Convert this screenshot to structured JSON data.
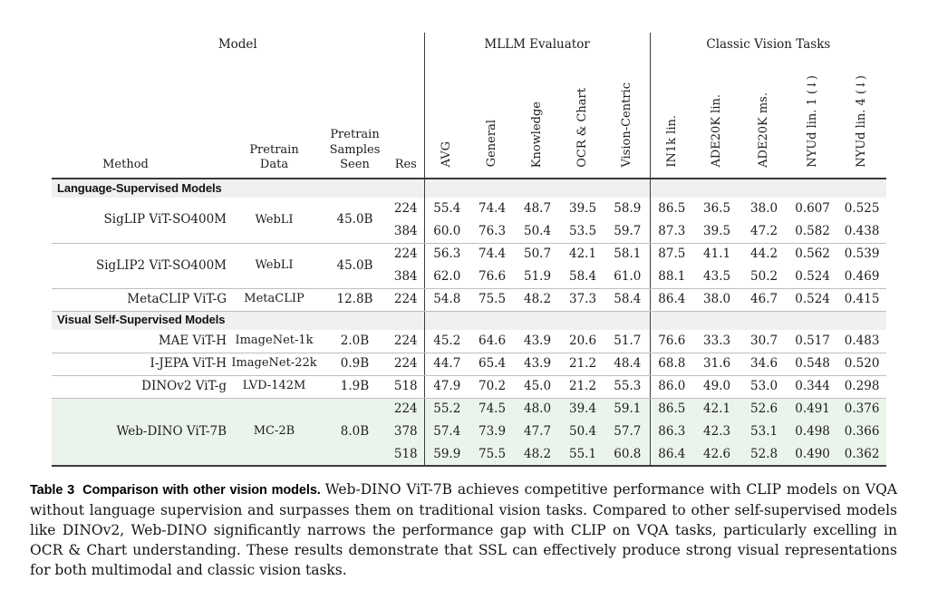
{
  "colors": {
    "section_band_bg": "#f0f0f0",
    "highlight_row_bg": "#ebf4ea",
    "rule_dark": "#3a3a3a",
    "rule_light": "#bfbfbf"
  },
  "table": {
    "group_headers": [
      {
        "label": "Model",
        "span": 4
      },
      {
        "label": "MLLM Evaluator",
        "span": 5
      },
      {
        "label": "Classic Vision Tasks",
        "span": 5
      }
    ],
    "columns": [
      "Method",
      "Pretrain Data",
      "Pretrain Samples Seen",
      "Res",
      "AVG",
      "General",
      "Knowledge",
      "OCR & Chart",
      "Vision-Centric",
      "IN1k lin.",
      "ADE20K lin.",
      "ADE20K ms.",
      "NYUd lin. 1 (↓)",
      "NYUd lin. 4 (↓)"
    ],
    "sections": [
      {
        "title": "Language-Supervised Models",
        "groups": [
          {
            "method": "SigLIP ViT-SO400M",
            "pretrain_data": "WebLI",
            "samples_seen": "45.0B",
            "rows": [
              {
                "res": "224",
                "values": [
                  "55.4",
                  "74.4",
                  "48.7",
                  "39.5",
                  "58.9",
                  "86.5",
                  "36.5",
                  "38.0",
                  "0.607",
                  "0.525"
                ]
              },
              {
                "res": "384",
                "values": [
                  "60.0",
                  "76.3",
                  "50.4",
                  "53.5",
                  "59.7",
                  "87.3",
                  "39.5",
                  "47.2",
                  "0.582",
                  "0.438"
                ]
              }
            ]
          },
          {
            "method": "SigLIP2 ViT-SO400M",
            "pretrain_data": "WebLI",
            "samples_seen": "45.0B",
            "rows": [
              {
                "res": "224",
                "values": [
                  "56.3",
                  "74.4",
                  "50.7",
                  "42.1",
                  "58.1",
                  "87.5",
                  "41.1",
                  "44.2",
                  "0.562",
                  "0.539"
                ]
              },
              {
                "res": "384",
                "values": [
                  "62.0",
                  "76.6",
                  "51.9",
                  "58.4",
                  "61.0",
                  "88.1",
                  "43.5",
                  "50.2",
                  "0.524",
                  "0.469"
                ]
              }
            ]
          },
          {
            "method": "MetaCLIP ViT-G",
            "pretrain_data": "MetaCLIP",
            "samples_seen": "12.8B",
            "rows": [
              {
                "res": "224",
                "values": [
                  "54.8",
                  "75.5",
                  "48.2",
                  "37.3",
                  "58.4",
                  "86.4",
                  "38.0",
                  "46.7",
                  "0.524",
                  "0.415"
                ]
              }
            ]
          }
        ]
      },
      {
        "title": "Visual Self-Supervised Models",
        "groups": [
          {
            "method": "MAE ViT-H",
            "pretrain_data": "ImageNet-1k",
            "samples_seen": "2.0B",
            "rows": [
              {
                "res": "224",
                "values": [
                  "45.2",
                  "64.6",
                  "43.9",
                  "20.6",
                  "51.7",
                  "76.6",
                  "33.3",
                  "30.7",
                  "0.517",
                  "0.483"
                ]
              }
            ]
          },
          {
            "method": "I-JEPA ViT-H",
            "pretrain_data": "ImageNet-22k",
            "samples_seen": "0.9B",
            "rows": [
              {
                "res": "224",
                "values": [
                  "44.7",
                  "65.4",
                  "43.9",
                  "21.2",
                  "48.4",
                  "68.8",
                  "31.6",
                  "34.6",
                  "0.548",
                  "0.520"
                ]
              }
            ]
          },
          {
            "method": "DINOv2 ViT-g",
            "pretrain_data": "LVD-142M",
            "samples_seen": "1.9B",
            "rows": [
              {
                "res": "518",
                "values": [
                  "47.9",
                  "70.2",
                  "45.0",
                  "21.2",
                  "55.3",
                  "86.0",
                  "49.0",
                  "53.0",
                  "0.344",
                  "0.298"
                ]
              }
            ]
          },
          {
            "method": "Web-DINO ViT-7B",
            "pretrain_data": "MC-2B",
            "samples_seen": "8.0B",
            "highlight": true,
            "rows": [
              {
                "res": "224",
                "values": [
                  "55.2",
                  "74.5",
                  "48.0",
                  "39.4",
                  "59.1",
                  "86.5",
                  "42.1",
                  "52.6",
                  "0.491",
                  "0.376"
                ]
              },
              {
                "res": "378",
                "values": [
                  "57.4",
                  "73.9",
                  "47.7",
                  "50.4",
                  "57.7",
                  "86.3",
                  "42.3",
                  "53.1",
                  "0.498",
                  "0.366"
                ]
              },
              {
                "res": "518",
                "values": [
                  "59.9",
                  "75.5",
                  "48.2",
                  "55.1",
                  "60.8",
                  "86.4",
                  "42.6",
                  "52.8",
                  "0.490",
                  "0.362"
                ]
              }
            ]
          }
        ]
      }
    ]
  },
  "caption": {
    "label": "Table 3",
    "title": "Comparison with other vision models.",
    "body": "Web-DINO ViT-7B achieves competitive performance with CLIP models on VQA without language supervision and surpasses them on traditional vision tasks. Compared to other self-supervised models like DINOv2, Web-DINO significantly narrows the performance gap with CLIP on VQA tasks, particularly excelling in OCR & Chart understanding. These results demonstrate that SSL can effectively produce strong visual representations for both multimodal and classic vision tasks."
  }
}
